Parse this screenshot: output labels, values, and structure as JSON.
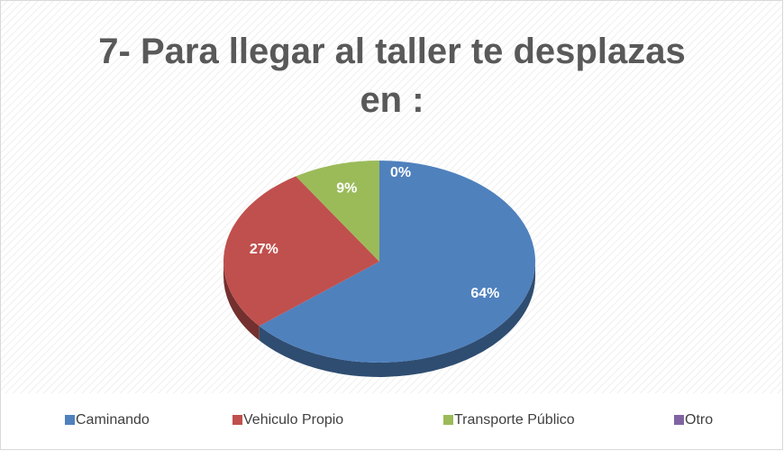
{
  "chart_data": {
    "type": "pie",
    "title": "7- Para llegar al taller te desplazas en :",
    "categories": [
      "Caminando",
      "Vehiculo Propio",
      "Transporte Público",
      "Otro"
    ],
    "values": [
      64,
      27,
      9,
      0
    ],
    "value_labels": [
      "64%",
      "27%",
      "9%",
      "0%"
    ],
    "colors": [
      "#4f81bd",
      "#c0504d",
      "#9bbb59",
      "#8064a2"
    ],
    "legend": "bottom"
  }
}
